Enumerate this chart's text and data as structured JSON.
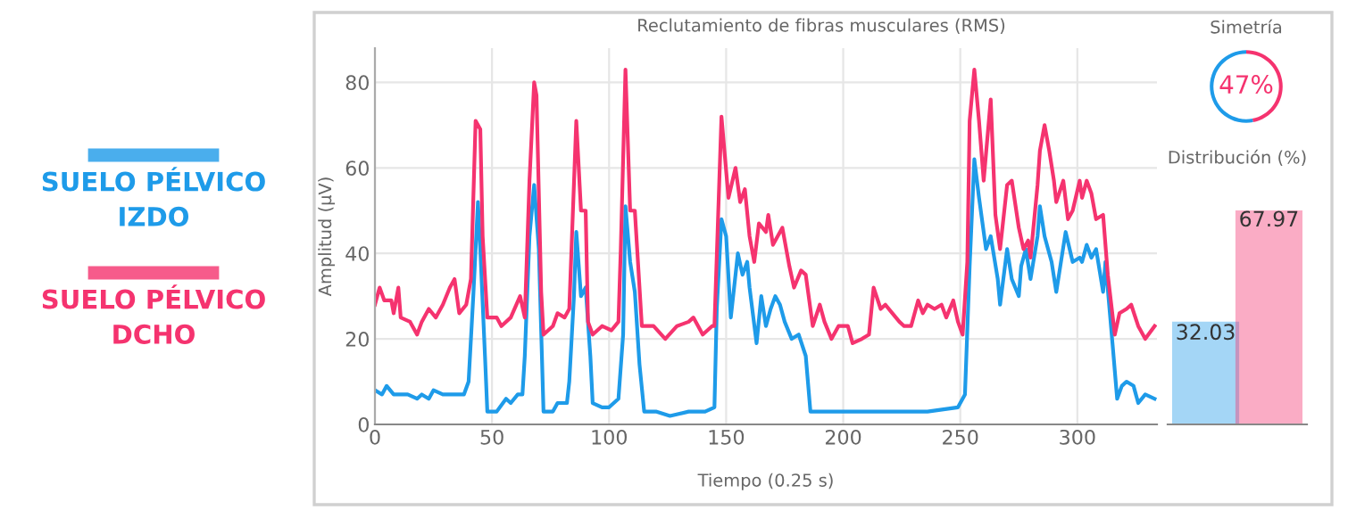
{
  "chart_data": [
    {
      "type": "line",
      "title": "Reclutamiento de fibras musculares (RMS)",
      "xlabel": "Tiempo (0.25 s)",
      "ylabel": "Amplitud (µV)",
      "xlim": [
        0,
        334
      ],
      "ylim": [
        0,
        88
      ],
      "xticks": [
        0,
        50,
        100,
        150,
        200,
        250,
        300
      ],
      "yticks": [
        0,
        20,
        40,
        60,
        80
      ],
      "grid": true,
      "legend": "left",
      "marker": "none",
      "line_style": "solid",
      "series": [
        {
          "name": "SUELO PÉLVICO\nIZDO",
          "color": "#1e9be9",
          "x": [
            0,
            3,
            5,
            8,
            10,
            14,
            18,
            20,
            23,
            25,
            29,
            32,
            35,
            38,
            40,
            42,
            44,
            45,
            47,
            48,
            52,
            56,
            58,
            61,
            63,
            64,
            66,
            68,
            70,
            72,
            76,
            78,
            82,
            83,
            85,
            86,
            88,
            90,
            92,
            93,
            97,
            100,
            104,
            106,
            107,
            109,
            111,
            113,
            115,
            120,
            126,
            134,
            141,
            145,
            146,
            148,
            150,
            152,
            155,
            157,
            159,
            160,
            163,
            165,
            167,
            169,
            171,
            173,
            175,
            178,
            181,
            184,
            186,
            189,
            196,
            198,
            211,
            224,
            236,
            249,
            252,
            254,
            256,
            258,
            261,
            263,
            266,
            267,
            270,
            272,
            275,
            276,
            278,
            280,
            283,
            284,
            286,
            289,
            291,
            293,
            295,
            298,
            301,
            302,
            304,
            306,
            308,
            311,
            312,
            315,
            317,
            319,
            321,
            324,
            326,
            329,
            333
          ],
          "values": [
            8,
            7,
            9,
            7,
            7,
            7,
            6,
            7,
            6,
            8,
            7,
            7,
            7,
            7,
            10,
            30,
            52,
            41,
            16,
            3,
            3,
            6,
            5,
            7,
            7,
            16,
            44,
            56,
            41,
            3,
            3,
            5,
            5,
            10,
            30,
            45,
            30,
            32,
            16,
            5,
            4,
            4,
            6,
            21,
            51,
            38,
            31,
            14,
            3,
            3,
            2,
            3,
            3,
            4,
            27,
            48,
            44,
            25,
            40,
            35,
            38,
            32,
            19,
            30,
            23,
            27,
            30,
            28,
            24,
            20,
            21,
            16,
            3,
            3,
            3,
            3,
            3,
            3,
            3,
            4,
            7,
            37,
            62,
            53,
            41,
            44,
            34,
            28,
            41,
            34,
            30,
            37,
            41,
            34,
            44,
            51,
            44,
            38,
            31,
            38,
            45,
            38,
            39,
            38,
            42,
            39,
            41,
            31,
            38,
            19,
            6,
            9,
            10,
            9,
            5,
            7,
            6
          ]
        },
        {
          "name": "SUELO PÉLVICO\nDCHO",
          "color": "#f5336f",
          "x": [
            0,
            2,
            4,
            7,
            8,
            10,
            11,
            15,
            18,
            20,
            23,
            26,
            29,
            32,
            34,
            36,
            39,
            41,
            43,
            45,
            46,
            48,
            52,
            54,
            58,
            62,
            64,
            66,
            68,
            69,
            71,
            72,
            76,
            78,
            81,
            83,
            86,
            88,
            90,
            91,
            93,
            97,
            101,
            104,
            105,
            107,
            109,
            111,
            114,
            119,
            124,
            129,
            134,
            136,
            140,
            144,
            145,
            148,
            151,
            154,
            156,
            158,
            160,
            162,
            164,
            167,
            168,
            170,
            172,
            174,
            177,
            179,
            182,
            184,
            187,
            190,
            192,
            195,
            198,
            202,
            204,
            208,
            211,
            213,
            216,
            218,
            221,
            224,
            226,
            229,
            232,
            234,
            236,
            239,
            242,
            244,
            247,
            249,
            251,
            253,
            254,
            256,
            258,
            260,
            263,
            265,
            267,
            270,
            272,
            275,
            277,
            279,
            280,
            283,
            284,
            286,
            288,
            290,
            291,
            294,
            296,
            298,
            301,
            302,
            304,
            306,
            308,
            311,
            313,
            316,
            318,
            321,
            323,
            326,
            329,
            333
          ],
          "values": [
            28,
            32,
            29,
            29,
            26,
            32,
            25,
            24,
            21,
            24,
            27,
            25,
            28,
            32,
            34,
            26,
            28,
            34,
            71,
            69,
            44,
            25,
            25,
            23,
            25,
            30,
            25,
            57,
            80,
            77,
            31,
            21,
            23,
            26,
            25,
            27,
            71,
            50,
            50,
            24,
            21,
            23,
            22,
            24,
            41,
            83,
            50,
            50,
            23,
            23,
            20,
            23,
            24,
            25,
            21,
            23,
            23,
            72,
            53,
            60,
            52,
            55,
            44,
            38,
            47,
            45,
            49,
            42,
            44,
            46,
            37,
            32,
            36,
            35,
            23,
            28,
            24,
            20,
            23,
            23,
            19,
            20,
            21,
            32,
            27,
            28,
            26,
            24,
            23,
            23,
            29,
            26,
            28,
            27,
            28,
            25,
            29,
            24,
            21,
            38,
            71,
            83,
            71,
            57,
            76,
            49,
            41,
            56,
            57,
            46,
            41,
            43,
            39,
            56,
            64,
            70,
            64,
            57,
            52,
            57,
            48,
            50,
            57,
            53,
            57,
            54,
            48,
            49,
            35,
            21,
            26,
            27,
            28,
            23,
            20,
            23
          ]
        }
      ]
    },
    {
      "type": "donut",
      "title": "Simetría",
      "categories": [
        null,
        null
      ],
      "values": [
        47,
        53
      ],
      "colors": [
        "#f5336f",
        "#1e9be9"
      ],
      "value_labels": [
        "47%",
        null
      ]
    },
    {
      "type": "bar",
      "title": "Distribución (%)",
      "categories": [
        null,
        null
      ],
      "values": [
        32.03,
        67.97
      ],
      "colors": [
        "#1e9be9",
        "#f5336f"
      ],
      "data_labels": true
    }
  ]
}
